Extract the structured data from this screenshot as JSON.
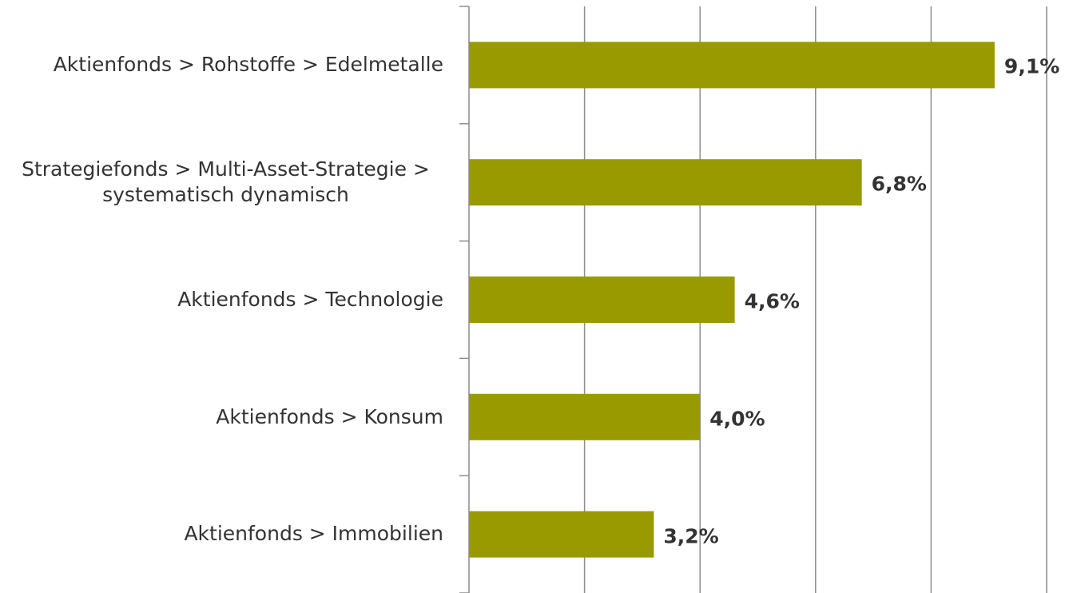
{
  "chart_data": {
    "type": "bar",
    "orientation": "horizontal",
    "categories": [
      "Aktienfonds > Rohstoffe > Edelmetalle",
      "Strategiefonds > Multi-Asset-Strategie > systematisch dynamisch",
      "Aktienfonds > Technologie",
      "Aktienfonds > Konsum",
      "Aktienfonds > Immobilien"
    ],
    "values": [
      9.1,
      6.8,
      4.6,
      4.0,
      3.2
    ],
    "value_labels": [
      "9,1%",
      "6,8%",
      "4,6%",
      "4,0%",
      "3,2%"
    ],
    "color": "#999900",
    "xlim": [
      0,
      10
    ],
    "xticks": [
      0,
      2,
      4,
      6,
      8,
      10
    ],
    "grid": true
  }
}
